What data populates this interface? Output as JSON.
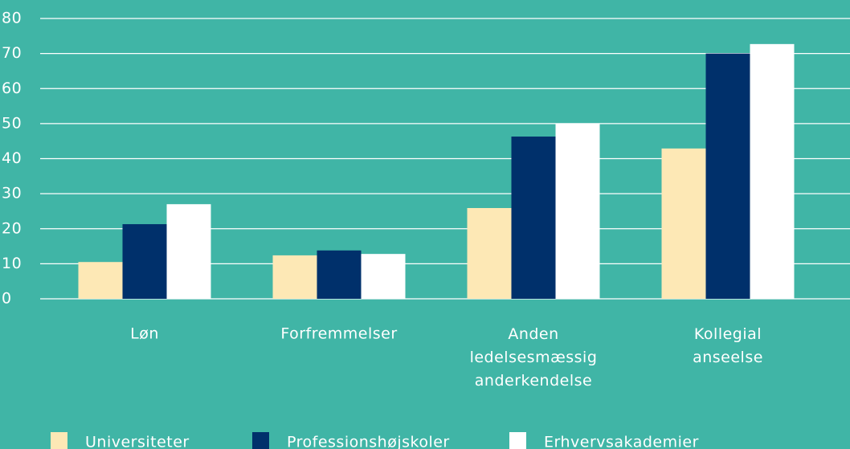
{
  "chart_data": {
    "type": "bar",
    "categories": [
      "Løn",
      "Forfremmelser",
      "Anden ledelsesmæssig anderkendelse",
      "Kollegial anseelse"
    ],
    "series": [
      {
        "name": "Universiteter",
        "color": "#fde8b5",
        "values": [
          10.5,
          12.4,
          25.9,
          42.9
        ]
      },
      {
        "name": "Professionshøjskoler",
        "color": "#00306b",
        "values": [
          21.3,
          13.8,
          46.3,
          70
        ]
      },
      {
        "name": "Erhvervsakademier",
        "color": "#ffffff",
        "values": [
          27,
          12.8,
          50,
          72.7
        ]
      }
    ],
    "ylim": [
      0,
      80
    ],
    "yticks": [
      0,
      10,
      20,
      30,
      40,
      50,
      60,
      70,
      80
    ],
    "grid": true,
    "legend": "bottom"
  }
}
